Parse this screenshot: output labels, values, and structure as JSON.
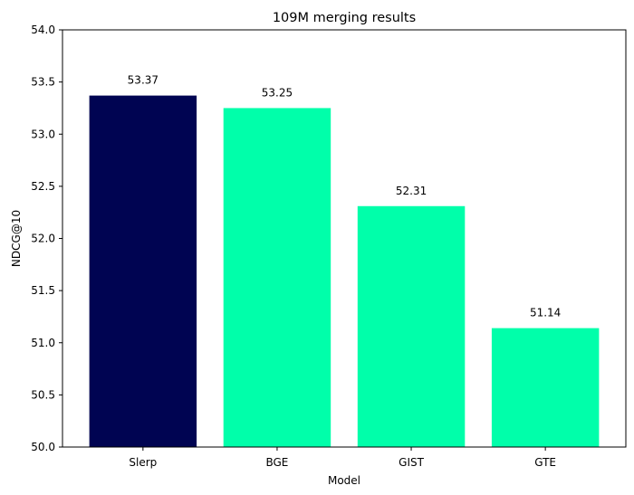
{
  "chart_data": {
    "type": "bar",
    "title": "109M merging results",
    "xlabel": "Model",
    "ylabel": "NDCG@10",
    "categories": [
      "Slerp",
      "BGE",
      "GIST",
      "GTE"
    ],
    "values": [
      53.37,
      53.25,
      52.31,
      51.14
    ],
    "data_labels": [
      "53.37",
      "53.25",
      "52.31",
      "51.14"
    ],
    "ylim": [
      50.0,
      54.0
    ],
    "yticks": [
      50.0,
      50.5,
      51.0,
      51.5,
      52.0,
      52.5,
      53.0,
      53.5,
      54.0
    ],
    "ytick_labels": [
      "50.0",
      "50.5",
      "51.0",
      "51.5",
      "52.0",
      "52.5",
      "53.0",
      "53.5",
      "54.0"
    ],
    "bar_colors": [
      "#000452",
      "#00ffaa",
      "#00ffaa",
      "#00ffaa"
    ],
    "grid": false,
    "legend": "none"
  }
}
